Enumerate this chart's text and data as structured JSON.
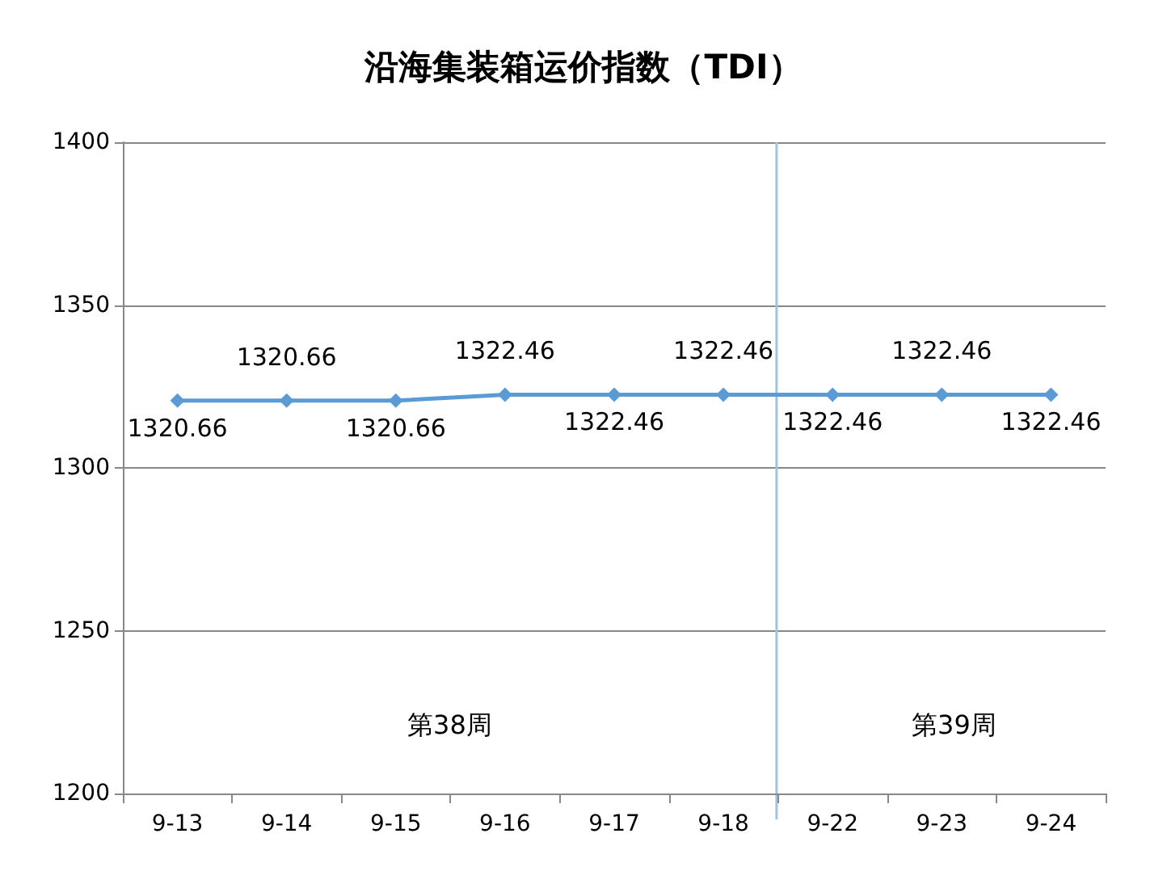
{
  "chart_data": {
    "type": "line",
    "title": "沿海集装箱运价指数（TDI）",
    "categories": [
      "9-13",
      "9-14",
      "9-15",
      "9-16",
      "9-17",
      "9-18",
      "9-22",
      "9-23",
      "9-24"
    ],
    "series": [
      {
        "color": "#5b9bd5",
        "values": [
          1320.66,
          1320.66,
          1320.66,
          1322.46,
          1322.46,
          1322.46,
          1322.46,
          1322.46,
          1322.46
        ]
      }
    ],
    "ylim": [
      1200,
      1400
    ],
    "yticks": [
      1200,
      1250,
      1300,
      1350,
      1400
    ],
    "grid": "y",
    "marker": "diamond",
    "line_style": "solid",
    "data_labels": true,
    "ref_lines": [
      {
        "axis": "x",
        "value": "9-22",
        "color": "#9dc3e6"
      }
    ],
    "annotations": [
      "第38周",
      "第39周"
    ]
  }
}
